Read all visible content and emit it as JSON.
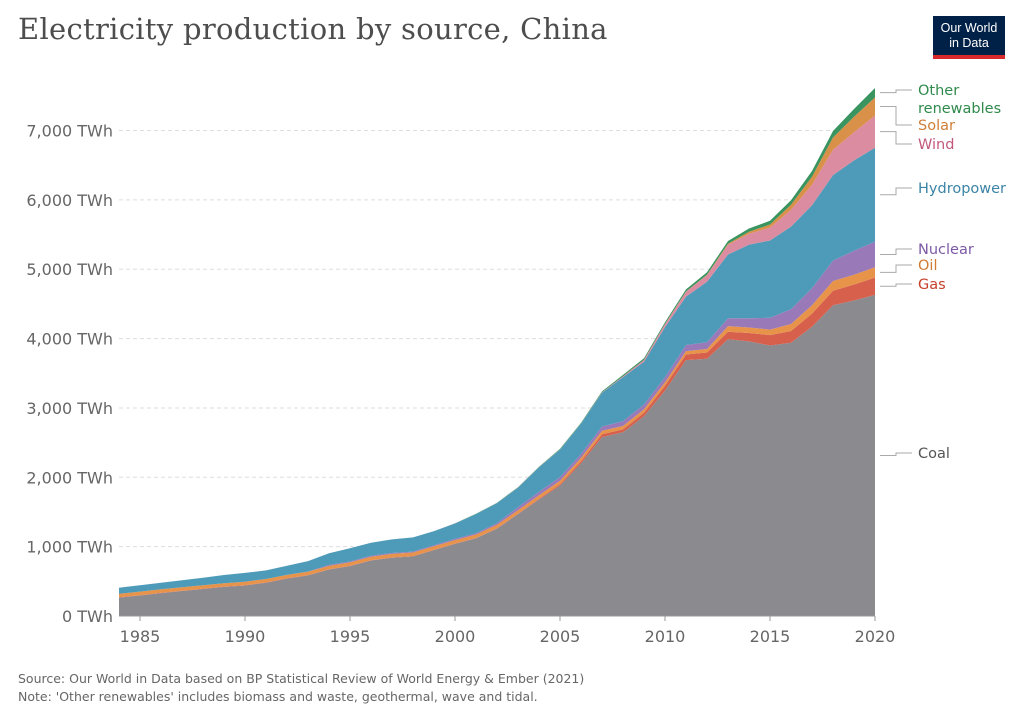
{
  "title": "Electricity production by source, China",
  "logo": {
    "line1": "Our World",
    "line2": "in Data"
  },
  "footer": {
    "source": "Source: Our World in Data based on BP Statistical Review of World Energy & Ember (2021)",
    "note": "Note: 'Other renewables' includes biomass and waste, geothermal, wave and tidal."
  },
  "chart_data": {
    "type": "area",
    "stacked": true,
    "title": "Electricity production by source, China",
    "y_unit": "TWh",
    "ylim": [
      0,
      7700
    ],
    "xlim": [
      1984,
      2020
    ],
    "y_ticks": [
      0,
      1000,
      2000,
      3000,
      4000,
      5000,
      6000,
      7000
    ],
    "y_tick_labels": [
      "0 TWh",
      "1,000 TWh",
      "2,000 TWh",
      "3,000 TWh",
      "4,000 TWh",
      "5,000 TWh",
      "6,000 TWh",
      "7,000 TWh"
    ],
    "x_ticks": [
      1985,
      1990,
      1995,
      2000,
      2005,
      2010,
      2015,
      2020
    ],
    "grid": "horizontal dashed",
    "legend": "right, inline labels",
    "x": [
      1984,
      1985,
      1986,
      1987,
      1988,
      1989,
      1990,
      1991,
      1992,
      1993,
      1994,
      1995,
      1996,
      1997,
      1998,
      1999,
      2000,
      2001,
      2002,
      2003,
      2004,
      2005,
      2006,
      2007,
      2008,
      2009,
      2010,
      2011,
      2012,
      2013,
      2014,
      2015,
      2016,
      2017,
      2018,
      2019,
      2020
    ],
    "series": [
      {
        "name": "Coal",
        "color": "#8a8a8f",
        "values": [
          265,
          295,
          330,
          360,
          390,
          420,
          440,
          480,
          540,
          585,
          670,
          720,
          800,
          840,
          860,
          950,
          1040,
          1120,
          1260,
          1470,
          1680,
          1880,
          2200,
          2580,
          2650,
          2880,
          3250,
          3690,
          3710,
          3990,
          3960,
          3900,
          3940,
          4170,
          4480,
          4550,
          4630
        ]
      },
      {
        "name": "Gas",
        "color": "#d7604d",
        "values": [
          5,
          5,
          5,
          5,
          5,
          5,
          5,
          5,
          5,
          5,
          5,
          5,
          5,
          5,
          5,
          5,
          5,
          5,
          5,
          5,
          10,
          20,
          30,
          40,
          40,
          50,
          70,
          80,
          90,
          110,
          120,
          150,
          170,
          190,
          210,
          230,
          250
        ]
      },
      {
        "name": "Oil",
        "color": "#e7934a",
        "values": [
          50,
          52,
          50,
          50,
          48,
          48,
          50,
          48,
          48,
          48,
          48,
          48,
          50,
          50,
          50,
          50,
          50,
          50,
          50,
          50,
          50,
          50,
          50,
          50,
          50,
          50,
          50,
          50,
          50,
          80,
          80,
          80,
          100,
          120,
          140,
          140,
          150
        ]
      },
      {
        "name": "Nuclear",
        "color": "#9a79b8",
        "values": [
          0,
          0,
          0,
          0,
          0,
          0,
          0,
          0,
          0,
          2,
          14,
          13,
          14,
          14,
          14,
          15,
          17,
          17,
          25,
          43,
          50,
          53,
          55,
          62,
          68,
          70,
          74,
          87,
          97,
          112,
          132,
          170,
          212,
          248,
          295,
          348,
          366
        ]
      },
      {
        "name": "Hydropower",
        "color": "#4e9bb9",
        "values": [
          87,
          92,
          95,
          100,
          109,
          118,
          126,
          125,
          131,
          151,
          167,
          190,
          188,
          196,
          204,
          204,
          222,
          277,
          288,
          284,
          354,
          397,
          436,
          486,
          637,
          616,
          722,
          699,
          872,
          920,
          1064,
          1114,
          1193,
          1194,
          1232,
          1302,
          1355
        ]
      },
      {
        "name": "Wind",
        "color": "#dc8ca0",
        "values": [
          0,
          0,
          0,
          0,
          0,
          0,
          0,
          0,
          0,
          0,
          0,
          0,
          0,
          0,
          0,
          0,
          1,
          1,
          2,
          2,
          3,
          3,
          4,
          6,
          13,
          28,
          45,
          70,
          96,
          141,
          156,
          186,
          241,
          295,
          366,
          405,
          466
        ]
      },
      {
        "name": "Solar",
        "color": "#d99049",
        "values": [
          0,
          0,
          0,
          0,
          0,
          0,
          0,
          0,
          0,
          0,
          0,
          0,
          0,
          0,
          0,
          0,
          0,
          0,
          0,
          0,
          0,
          0,
          0,
          0,
          0,
          0,
          1,
          3,
          6,
          15,
          29,
          45,
          75,
          118,
          177,
          224,
          261
        ]
      },
      {
        "name": "Other renewables",
        "color": "#3a9460",
        "values": [
          0,
          0,
          0,
          0,
          0,
          0,
          0,
          0,
          0,
          0,
          0,
          0,
          0,
          0,
          0,
          0,
          2,
          3,
          4,
          5,
          6,
          8,
          10,
          14,
          18,
          22,
          25,
          30,
          35,
          40,
          46,
          53,
          64,
          81,
          93,
          111,
          136
        ]
      }
    ],
    "legend_labels": [
      {
        "series": "Other renewables",
        "lines": [
          "Other",
          "renewables"
        ],
        "color": "#2f8a4c"
      },
      {
        "series": "Solar",
        "lines": [
          "Solar"
        ],
        "color": "#cf7e38"
      },
      {
        "series": "Wind",
        "lines": [
          "Wind"
        ],
        "color": "#c2587a"
      },
      {
        "series": "Hydropower",
        "lines": [
          "Hydropower"
        ],
        "color": "#3c84a6"
      },
      {
        "series": "Nuclear",
        "lines": [
          "Nuclear"
        ],
        "color": "#7d5aa6"
      },
      {
        "series": "Oil",
        "lines": [
          "Oil"
        ],
        "color": "#d07a32"
      },
      {
        "series": "Gas",
        "lines": [
          "Gas"
        ],
        "color": "#c6412c"
      },
      {
        "series": "Coal",
        "lines": [
          "Coal"
        ],
        "color": "#555555"
      }
    ]
  }
}
